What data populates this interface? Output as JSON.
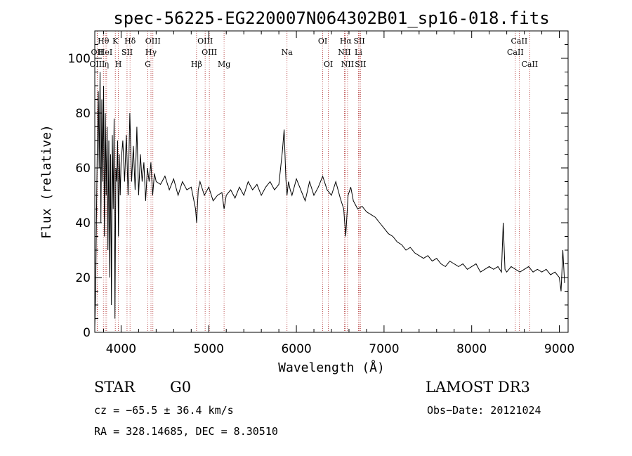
{
  "chart_data": {
    "type": "line",
    "title": "spec-56225-EG220007N064302B01_sp16-018.fits",
    "xlabel": "Wavelength (Å)",
    "ylabel": "Flux (relative)",
    "xlim": [
      3700,
      9100
    ],
    "ylim": [
      0,
      110
    ],
    "xticks": [
      4000,
      5000,
      6000,
      7000,
      8000,
      9000
    ],
    "yticks": [
      0,
      20,
      40,
      60,
      80,
      100
    ],
    "grid": false,
    "series": [
      {
        "x": [
          3700,
          3710,
          3720,
          3730,
          3740,
          3750,
          3760,
          3770,
          3780,
          3790,
          3800,
          3810,
          3820,
          3830,
          3840,
          3850,
          3860,
          3870,
          3880,
          3890,
          3900,
          3910,
          3920,
          3930,
          3940,
          3950,
          3960,
          3970,
          3980,
          3990,
          4000,
          4020,
          4040,
          4060,
          4080,
          4100,
          4120,
          4140,
          4160,
          4180,
          4200,
          4220,
          4240,
          4260,
          4280,
          4300,
          4320,
          4340,
          4360,
          4380,
          4400,
          4450,
          4500,
          4550,
          4600,
          4650,
          4700,
          4750,
          4800,
          4850,
          4862,
          4880,
          4900,
          4950,
          5000,
          5050,
          5100,
          5150,
          5175,
          5200,
          5250,
          5300,
          5350,
          5400,
          5450,
          5500,
          5550,
          5600,
          5650,
          5700,
          5750,
          5800,
          5820,
          5840,
          5860,
          5880,
          5893,
          5910,
          5930,
          5950,
          6000,
          6050,
          6100,
          6150,
          6200,
          6250,
          6300,
          6350,
          6400,
          6450,
          6500,
          6540,
          6563,
          6590,
          6620,
          6650,
          6700,
          6750,
          6800,
          6850,
          6900,
          6950,
          7000,
          7050,
          7100,
          7150,
          7200,
          7250,
          7300,
          7350,
          7400,
          7450,
          7500,
          7550,
          7600,
          7650,
          7700,
          7750,
          7800,
          7850,
          7900,
          7950,
          8000,
          8050,
          8100,
          8150,
          8200,
          8250,
          8300,
          8340,
          8360,
          8380,
          8400,
          8450,
          8500,
          8550,
          8600,
          8650,
          8700,
          8750,
          8800,
          8850,
          8900,
          8950,
          9000,
          9020,
          9040,
          9060
        ],
        "y": [
          2,
          15,
          45,
          70,
          88,
          60,
          95,
          40,
          85,
          55,
          90,
          35,
          80,
          50,
          75,
          30,
          70,
          20,
          65,
          10,
          72,
          45,
          78,
          5,
          60,
          55,
          70,
          35,
          65,
          50,
          62,
          70,
          55,
          72,
          50,
          80,
          55,
          68,
          52,
          75,
          50,
          65,
          55,
          62,
          48,
          60,
          55,
          62,
          50,
          58,
          55,
          54,
          57,
          52,
          56,
          50,
          55,
          52,
          53,
          45,
          40,
          52,
          55,
          50,
          53,
          48,
          50,
          51,
          45,
          50,
          52,
          49,
          53,
          50,
          55,
          52,
          54,
          50,
          53,
          55,
          52,
          54,
          60,
          66,
          74,
          56,
          50,
          55,
          52,
          50,
          56,
          52,
          48,
          55,
          50,
          53,
          57,
          52,
          50,
          55,
          49,
          45,
          35,
          50,
          53,
          48,
          45,
          46,
          44,
          43,
          42,
          40,
          38,
          36,
          35,
          33,
          32,
          30,
          31,
          29,
          28,
          27,
          28,
          26,
          27,
          25,
          24,
          26,
          25,
          24,
          25,
          23,
          24,
          25,
          22,
          23,
          24,
          23,
          24,
          22,
          40,
          23,
          22,
          24,
          23,
          22,
          23,
          24,
          22,
          23,
          22,
          23,
          21,
          22,
          20,
          15,
          30,
          18
        ]
      }
    ],
    "line_markers": [
      {
        "label": "Hθ",
        "x": 3798,
        "row": 1
      },
      {
        "label": "OII",
        "x": 3727,
        "row": 2
      },
      {
        "label": "OIII",
        "x": 3727,
        "row": 3
      },
      {
        "label": "HeI",
        "x": 3820,
        "row": 2
      },
      {
        "label": "η",
        "x": 3835,
        "row": 3
      },
      {
        "label": "K",
        "x": 3934,
        "row": 1
      },
      {
        "label": "SII",
        "x": 4068,
        "row": 2
      },
      {
        "label": "H",
        "x": 3969,
        "row": 3
      },
      {
        "label": "Hδ",
        "x": 4102,
        "row": 1
      },
      {
        "label": "OIII",
        "x": 4363,
        "row": 1
      },
      {
        "label": "Hγ",
        "x": 4341,
        "row": 2
      },
      {
        "label": "G",
        "x": 4305,
        "row": 3
      },
      {
        "label": "Hβ",
        "x": 4861,
        "row": 3
      },
      {
        "label": "OIII",
        "x": 4959,
        "row": 1
      },
      {
        "label": "OIII",
        "x": 5007,
        "row": 2
      },
      {
        "label": "Mg",
        "x": 5175,
        "row": 3
      },
      {
        "label": "Na",
        "x": 5893,
        "row": 2
      },
      {
        "label": "OI",
        "x": 6300,
        "row": 1
      },
      {
        "label": "OI",
        "x": 6364,
        "row": 3
      },
      {
        "label": "Hα",
        "x": 6563,
        "row": 1
      },
      {
        "label": "SII",
        "x": 6717,
        "row": 1
      },
      {
        "label": "NII",
        "x": 6548,
        "row": 2
      },
      {
        "label": "Li",
        "x": 6708,
        "row": 2
      },
      {
        "label": "NII",
        "x": 6584,
        "row": 3
      },
      {
        "label": "SII",
        "x": 6731,
        "row": 3
      },
      {
        "label": "CaII",
        "x": 8542,
        "row": 1
      },
      {
        "label": "CaII",
        "x": 8498,
        "row": 2
      },
      {
        "label": "CaII",
        "x": 8662,
        "row": 3
      }
    ]
  },
  "info": {
    "class": "STAR",
    "subclass": "G0",
    "survey": "LAMOST DR3",
    "cz": "cz = −65.5 ± 36.4 km/s",
    "obs_date": "Obs−Date: 20121024",
    "coords": "RA = 328.14685, DEC =   8.30510"
  }
}
